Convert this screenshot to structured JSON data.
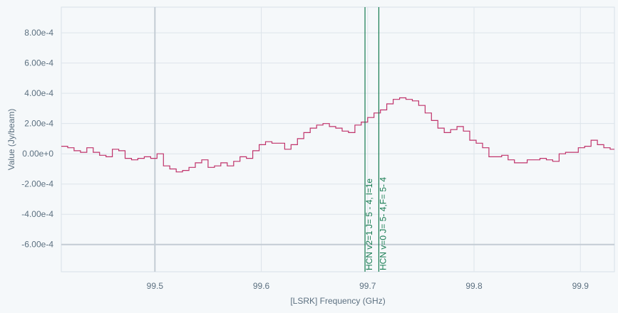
{
  "chart_data": {
    "type": "line",
    "xlabel": "[LSRK] Frequency (GHz)",
    "ylabel": "Value (Jy/beam)",
    "xlim": [
      99.412,
      99.932
    ],
    "ylim": [
      -0.00078,
      0.00097
    ],
    "xticks": [
      99.5,
      99.6,
      99.7,
      99.8,
      99.9
    ],
    "xtick_labels": [
      "99.5",
      "99.6",
      "99.7",
      "99.8",
      "99.9"
    ],
    "yticks": [
      0.0008,
      0.0006,
      0.0004,
      0.0002,
      0.0,
      -0.0002,
      -0.0004,
      -0.0006
    ],
    "ytick_labels": [
      "8.00e-4",
      "6.00e-4",
      "4.00e-4",
      "2.00e-4",
      "0.00e+0",
      "-2.00e-4",
      "-4.00e-4",
      "-6.00e-4"
    ],
    "grid": true,
    "cursor_x": 99.5,
    "cursor_y": -0.0006,
    "series": [
      {
        "color": "#c0336b",
        "step": true,
        "x": [
          99.412,
          99.418,
          99.424,
          99.43,
          99.436,
          99.442,
          99.448,
          99.454,
          99.46,
          99.466,
          99.472,
          99.478,
          99.484,
          99.49,
          99.496,
          99.502,
          99.508,
          99.514,
          99.52,
          99.526,
          99.532,
          99.538,
          99.544,
          99.55,
          99.556,
          99.562,
          99.568,
          99.574,
          99.58,
          99.586,
          99.592,
          99.598,
          99.604,
          99.61,
          99.616,
          99.622,
          99.628,
          99.634,
          99.64,
          99.646,
          99.652,
          99.658,
          99.664,
          99.67,
          99.676,
          99.682,
          99.688,
          99.694,
          99.7,
          99.706,
          99.712,
          99.718,
          99.724,
          99.73,
          99.736,
          99.742,
          99.748,
          99.754,
          99.76,
          99.766,
          99.772,
          99.778,
          99.784,
          99.79,
          99.796,
          99.802,
          99.808,
          99.814,
          99.82,
          99.826,
          99.832,
          99.838,
          99.844,
          99.85,
          99.856,
          99.862,
          99.868,
          99.874,
          99.88,
          99.886,
          99.892,
          99.898,
          99.904,
          99.91,
          99.916,
          99.922,
          99.928
        ],
        "y": [
          5e-05,
          4e-05,
          2e-05,
          1e-05,
          4e-05,
          1e-05,
          -1e-05,
          -2e-05,
          3e-05,
          2e-05,
          -3e-05,
          -4e-05,
          -3e-05,
          -2e-05,
          -3e-05,
          0.0,
          -8e-05,
          -0.0001,
          -0.00012,
          -0.00011,
          -9e-05,
          -6e-05,
          -4e-05,
          -9e-05,
          -8e-05,
          -6e-05,
          -8e-05,
          -5e-05,
          -2e-05,
          -3e-05,
          2e-05,
          6e-05,
          8e-05,
          7e-05,
          7e-05,
          3e-05,
          6e-05,
          0.0001,
          0.00014,
          0.00017,
          0.00019,
          0.0002,
          0.00018,
          0.00017,
          0.00015,
          0.00014,
          0.00019,
          0.00021,
          0.00024,
          0.00027,
          0.00029,
          0.00033,
          0.00036,
          0.00037,
          0.00036,
          0.00035,
          0.00032,
          0.00027,
          0.00022,
          0.00017,
          0.00014,
          0.00016,
          0.00018,
          0.00015,
          9e-05,
          7e-05,
          4e-05,
          -2e-05,
          -2e-05,
          -1e-05,
          -4e-05,
          -6e-05,
          -6e-05,
          -4e-05,
          -4e-05,
          -3e-05,
          -4e-05,
          -5e-05,
          0.0,
          1e-05,
          1e-05,
          4e-05,
          5e-05,
          9e-05,
          6e-05,
          4e-05,
          3e-05
        ]
      }
    ],
    "spectral_lines": [
      {
        "x": 99.6975,
        "label": "HCN v2=1 J=     5     -    4, l=1e",
        "color": "#147a4f"
      },
      {
        "x": 99.7105,
        "label": "HCN v=0 J= 5- 4,F= 5- 4",
        "color": "#147a4f"
      }
    ]
  }
}
